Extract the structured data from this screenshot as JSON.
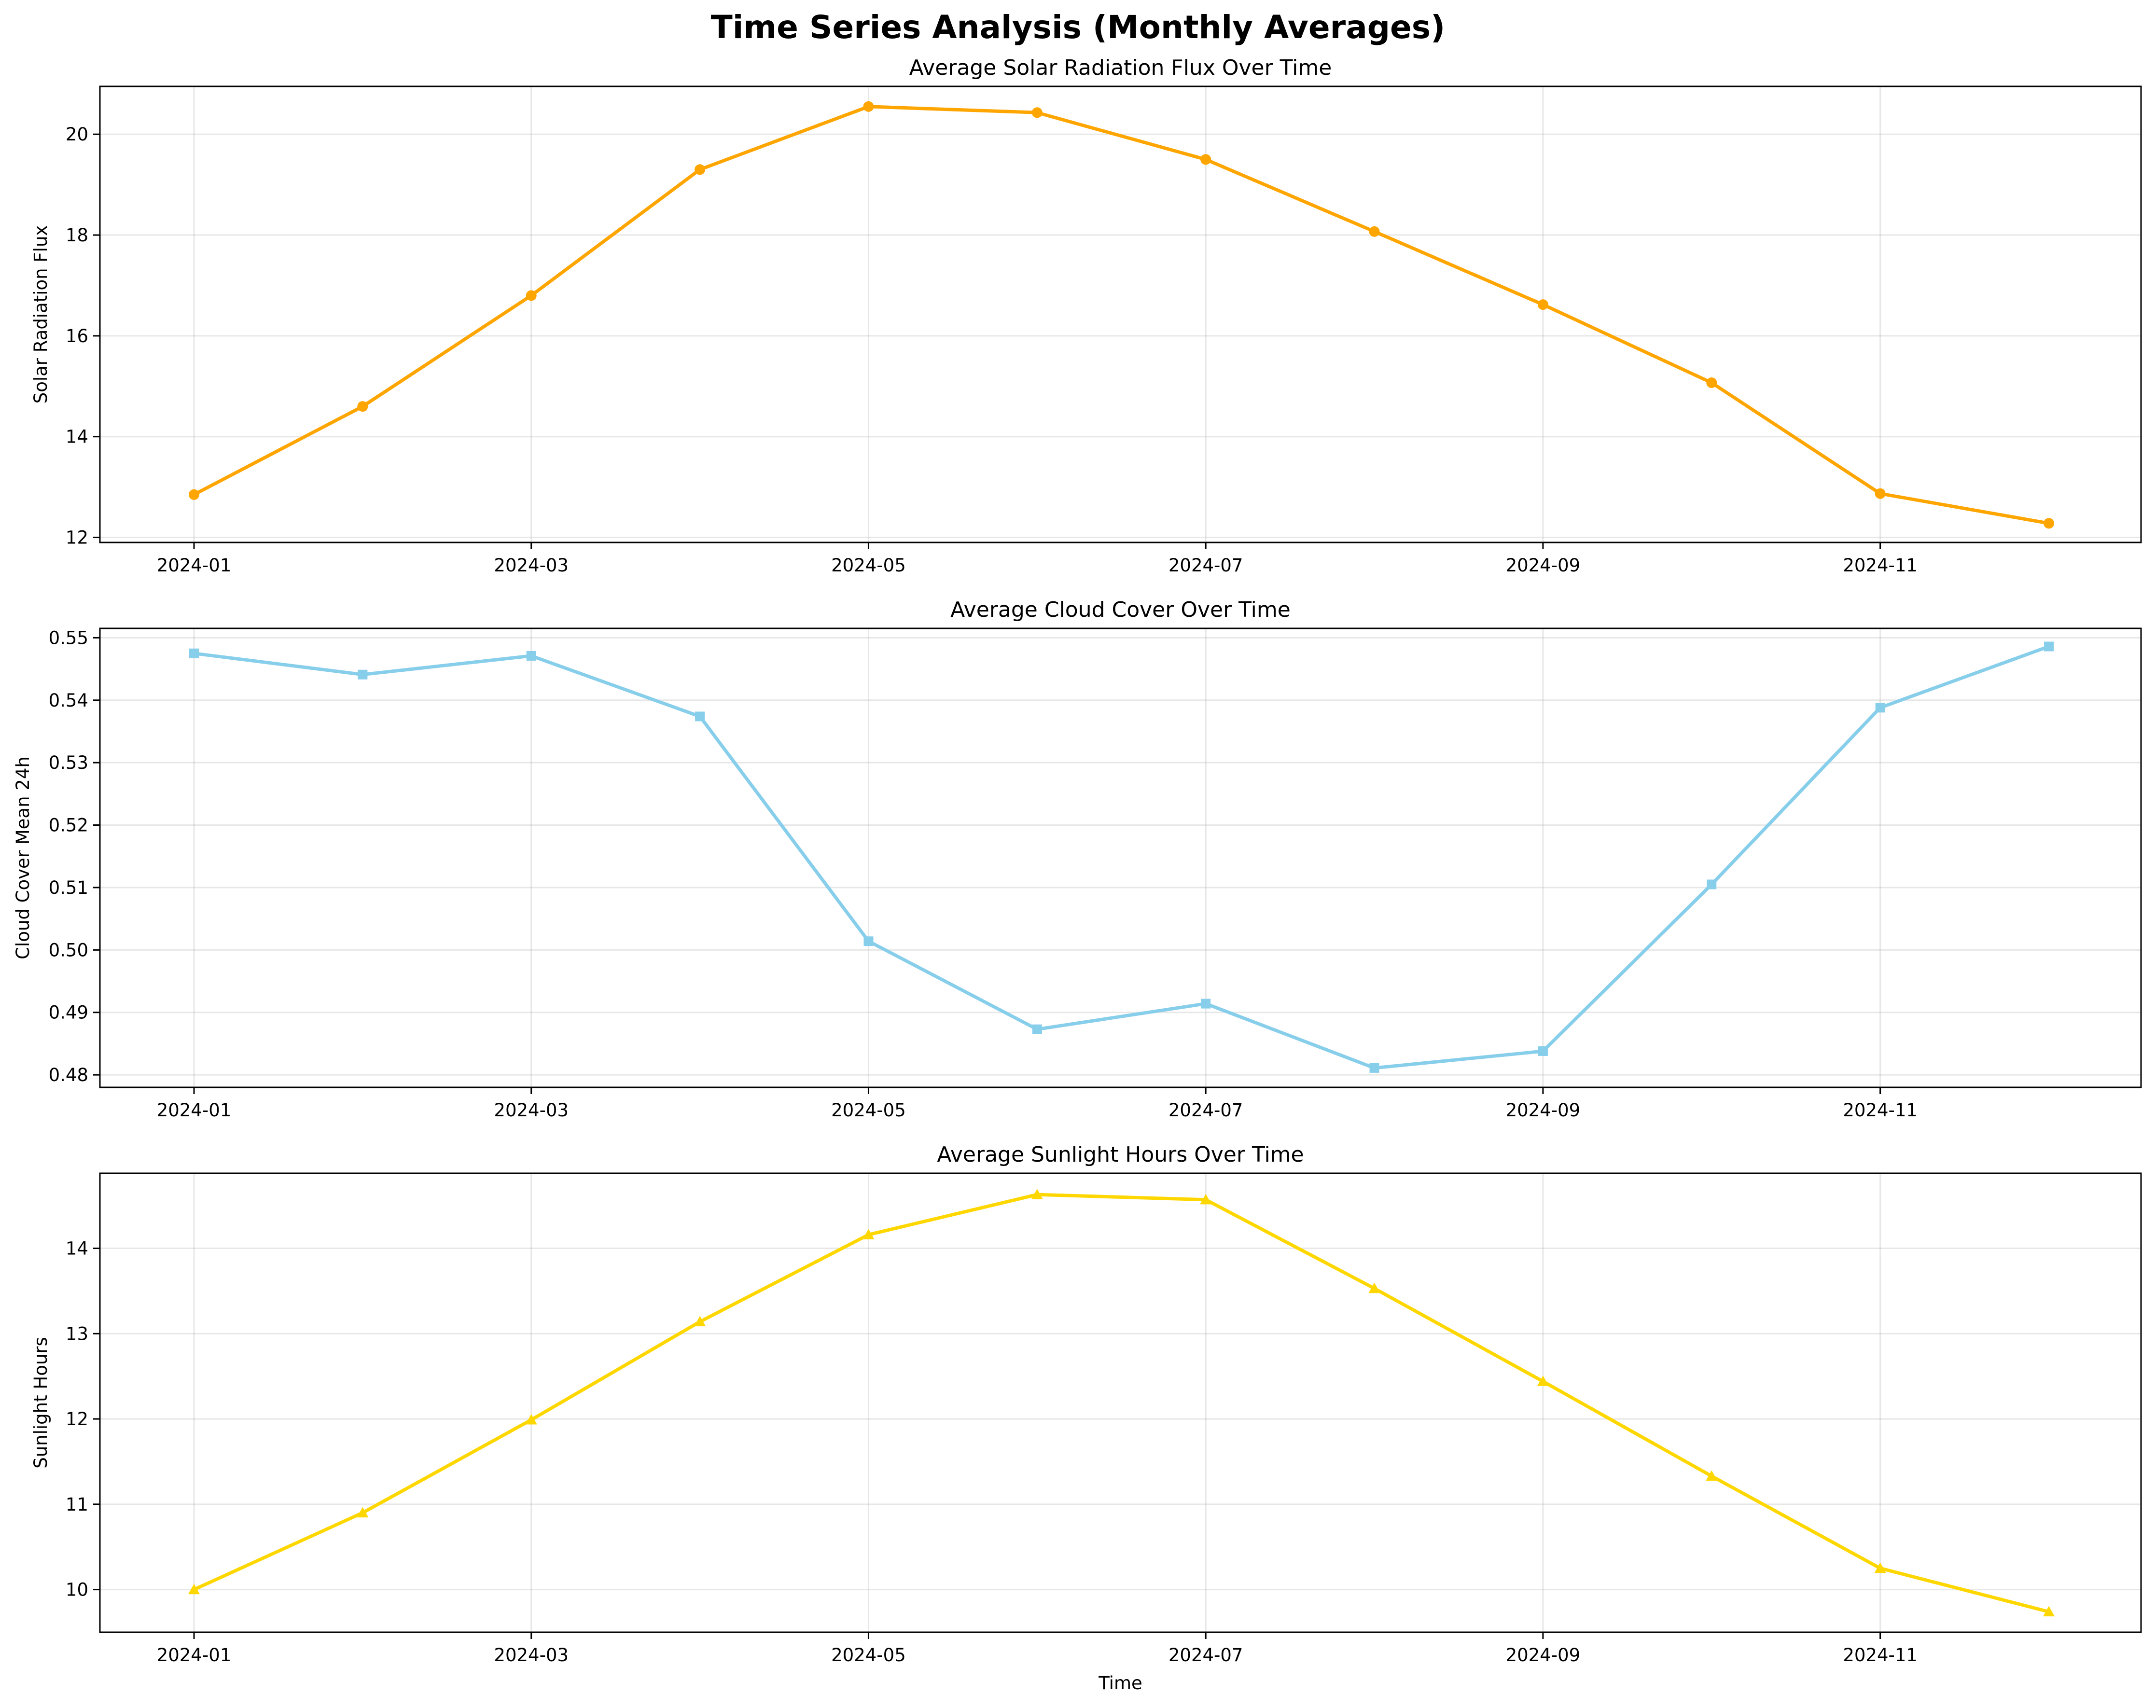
{
  "figure": {
    "title": "Time Series Analysis (Monthly Averages)"
  },
  "chart_data": [
    {
      "type": "line",
      "title": "Average Solar Radiation Flux Over Time",
      "xlabel": "",
      "ylabel": "Solar Radiation Flux",
      "x": [
        "2024-01",
        "2024-02",
        "2024-03",
        "2024-04",
        "2024-05",
        "2024-06",
        "2024-07",
        "2024-08",
        "2024-09",
        "2024-10",
        "2024-11",
        "2024-12"
      ],
      "xticks": [
        "2024-01",
        "2024-03",
        "2024-05",
        "2024-07",
        "2024-09",
        "2024-11"
      ],
      "yticks": [
        12,
        14,
        16,
        18,
        20
      ],
      "ylim": [
        11.9,
        20.95
      ],
      "grid": true,
      "marker": "circle",
      "color": "#FFA500",
      "series": [
        {
          "values": [
            12.85,
            14.6,
            16.8,
            19.3,
            20.55,
            20.43,
            19.5,
            18.07,
            16.62,
            15.07,
            12.87,
            12.28
          ]
        }
      ]
    },
    {
      "type": "line",
      "title": "Average Cloud Cover Over Time",
      "xlabel": "",
      "ylabel": "Cloud Cover Mean 24h",
      "x": [
        "2024-01",
        "2024-02",
        "2024-03",
        "2024-04",
        "2024-05",
        "2024-06",
        "2024-07",
        "2024-08",
        "2024-09",
        "2024-10",
        "2024-11",
        "2024-12"
      ],
      "xticks": [
        "2024-01",
        "2024-03",
        "2024-05",
        "2024-07",
        "2024-09",
        "2024-11"
      ],
      "yticks": [
        0.48,
        0.49,
        0.5,
        0.51,
        0.52,
        0.53,
        0.54,
        0.55
      ],
      "ylim": [
        0.478,
        0.5515
      ],
      "grid": true,
      "marker": "square",
      "color": "#87CEEB",
      "series": [
        {
          "values": [
            0.5475,
            0.5441,
            0.5471,
            0.5374,
            0.5014,
            0.4873,
            0.4914,
            0.4811,
            0.4838,
            0.5105,
            0.5388,
            0.5486
          ]
        }
      ]
    },
    {
      "type": "line",
      "title": "Average Sunlight Hours Over Time",
      "xlabel": "Time",
      "ylabel": "Sunlight Hours",
      "x": [
        "2024-01",
        "2024-02",
        "2024-03",
        "2024-04",
        "2024-05",
        "2024-06",
        "2024-07",
        "2024-08",
        "2024-09",
        "2024-10",
        "2024-11",
        "2024-12"
      ],
      "xticks": [
        "2024-01",
        "2024-03",
        "2024-05",
        "2024-07",
        "2024-09",
        "2024-11"
      ],
      "yticks": [
        10,
        11,
        12,
        13,
        14
      ],
      "ylim": [
        9.5,
        14.88
      ],
      "grid": true,
      "marker": "triangle",
      "color": "#FFD700",
      "series": [
        {
          "values": [
            10.0,
            10.9,
            11.99,
            13.14,
            14.16,
            14.63,
            14.57,
            13.53,
            12.44,
            11.33,
            10.25,
            9.74
          ]
        }
      ]
    }
  ]
}
